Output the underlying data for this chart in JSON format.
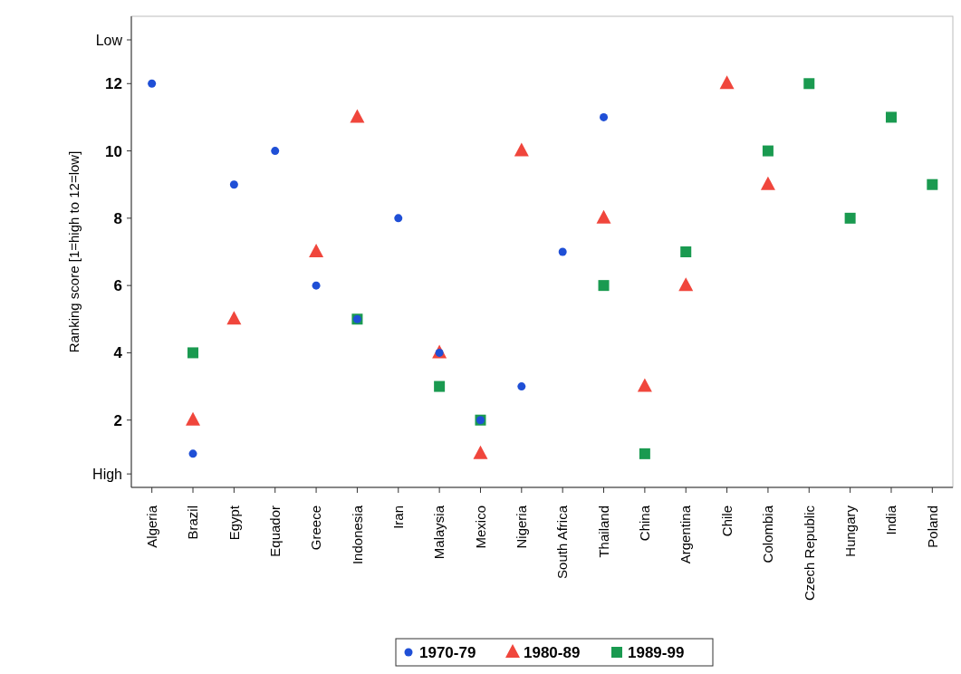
{
  "chart_data": {
    "type": "scatter",
    "ylabel": "Ranking score [1=high to 12=low]",
    "categories": [
      "Algeria",
      "Brazil",
      "Egypt",
      "Equador",
      "Greece",
      "Indonesia",
      "Iran",
      "Malaysia",
      "Mexico",
      "Nigeria",
      "South Africa",
      "Thailand",
      "China",
      "Argentina",
      "Chile",
      "Colombia",
      "Czech Republic",
      "Hungary",
      "India",
      "Poland"
    ],
    "series": [
      {
        "name": "1970-79",
        "color": "#1f4fd6",
        "marker": "circle",
        "values": [
          12,
          1,
          9,
          10,
          6,
          5,
          8,
          4,
          2,
          3,
          7,
          11,
          null,
          null,
          null,
          null,
          null,
          null,
          null,
          null
        ]
      },
      {
        "name": "1980-89",
        "color": "#f0463c",
        "marker": "triangle",
        "values": [
          null,
          2,
          5,
          null,
          7,
          11,
          null,
          4,
          1,
          10,
          null,
          8,
          3,
          6,
          12,
          9,
          null,
          null,
          null,
          null
        ]
      },
      {
        "name": "1989-99",
        "color": "#1a9a50",
        "marker": "square",
        "values": [
          null,
          4,
          null,
          null,
          null,
          5,
          null,
          3,
          2,
          null,
          null,
          6,
          1,
          7,
          null,
          10,
          12,
          8,
          11,
          9
        ]
      }
    ],
    "ylim": [
      0,
      14
    ],
    "yticks": [
      {
        "value": 0.4,
        "label": "High"
      },
      2,
      4,
      6,
      8,
      10,
      12,
      {
        "value": 13.3,
        "label": "Low"
      }
    ],
    "grid": false,
    "legend": "bottom"
  }
}
